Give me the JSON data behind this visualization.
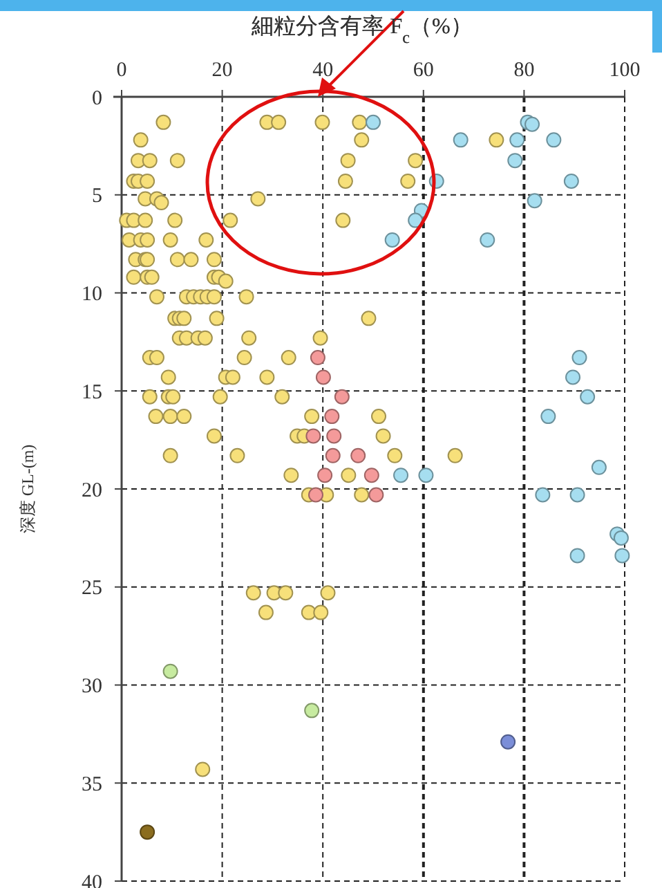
{
  "chart_data": {
    "type": "scatter",
    "xlabel": "細粒分含有率  F$_{c}$（%）",
    "ylabel": "深度  GL-(m)",
    "xlim": [
      0,
      100
    ],
    "xticks": [
      0,
      20,
      40,
      60,
      80,
      100
    ],
    "ylim": [
      40,
      0
    ],
    "yticks": [
      0,
      5,
      10,
      15,
      20,
      25,
      30,
      35,
      40
    ],
    "grid": true,
    "marker": "circle",
    "series": [
      {
        "color": "#f7e07a",
        "x": [
          8.3,
          28.9,
          31.2,
          39.9,
          47.3,
          3.8,
          47.7,
          74.5,
          3.3,
          5.6,
          11.1,
          45,
          58.4,
          2.4,
          3.3,
          5.1,
          44.5,
          56.9,
          4.7,
          7,
          7.9,
          27.1,
          1,
          2.4,
          4.7,
          10.6,
          21.6,
          44,
          1.5,
          3.8,
          5.1,
          9.7,
          16.8,
          2.8,
          4.7,
          5.1,
          11.1,
          13.8,
          18.4,
          2.4,
          5.1,
          6,
          18.4,
          19.3,
          20.7,
          7,
          12.9,
          14.3,
          15.7,
          17,
          18.4,
          24.8,
          10.6,
          11.5,
          12.4,
          18.9,
          49.1,
          11.5,
          12.9,
          15.2,
          16.6,
          25.3,
          39.5,
          5.6,
          7,
          24.4,
          33.2,
          9.3,
          20.7,
          22.1,
          28.9,
          5.6,
          9.3,
          10.2,
          19.6,
          31.9,
          6.8,
          9.7,
          12.4,
          37.8,
          51.1,
          18.4,
          34.9,
          36.3,
          52,
          9.7,
          23,
          54.3,
          66.3,
          33.7,
          45.1,
          37.2,
          40.7,
          47.7,
          26.2,
          30.3,
          32.6,
          41,
          28.7,
          37.2,
          39.6,
          16.1
        ],
        "values": [
          1.3,
          1.3,
          1.3,
          1.3,
          1.3,
          2.2,
          2.2,
          2.2,
          3.25,
          3.25,
          3.25,
          3.25,
          3.25,
          4.3,
          4.3,
          4.3,
          4.3,
          4.3,
          5.2,
          5.2,
          5.4,
          5.2,
          6.3,
          6.3,
          6.3,
          6.3,
          6.3,
          6.3,
          7.3,
          7.3,
          7.3,
          7.3,
          7.3,
          8.3,
          8.3,
          8.3,
          8.3,
          8.3,
          8.3,
          9.2,
          9.2,
          9.2,
          9.2,
          9.2,
          9.4,
          10.2,
          10.2,
          10.2,
          10.2,
          10.2,
          10.2,
          10.2,
          11.3,
          11.3,
          11.3,
          11.3,
          11.3,
          12.3,
          12.3,
          12.3,
          12.3,
          12.3,
          12.3,
          13.3,
          13.3,
          13.3,
          13.3,
          14.3,
          14.3,
          14.3,
          14.3,
          15.3,
          15.3,
          15.3,
          15.3,
          15.3,
          16.3,
          16.3,
          16.3,
          16.3,
          16.3,
          17.3,
          17.3,
          17.3,
          17.3,
          18.3,
          18.3,
          18.3,
          18.3,
          19.3,
          19.3,
          20.3,
          20.3,
          20.3,
          25.3,
          25.3,
          25.3,
          25.3,
          26.3,
          26.3,
          26.3,
          34.3
        ]
      },
      {
        "color": "#f49a9a",
        "x": [
          39,
          40.1,
          43.8,
          41.8,
          38.1,
          42.2,
          42,
          47,
          40.4,
          49.7,
          38.6,
          50.6
        ],
        "values": [
          13.3,
          14.3,
          15.3,
          16.3,
          17.3,
          17.3,
          18.3,
          18.3,
          19.3,
          19.3,
          20.3,
          20.3
        ]
      },
      {
        "color": "#a6def0",
        "x": [
          50,
          80.7,
          81.6,
          67.4,
          78.6,
          85.9,
          78.2,
          62.6,
          89.4,
          82.1,
          59.6,
          58.4,
          53.8,
          72.7,
          91,
          89.7,
          92.6,
          84.8,
          55.5,
          60.5,
          94.9,
          83.7,
          90.6,
          98.5,
          99.3,
          90.6,
          99.5
        ],
        "values": [
          1.3,
          1.3,
          1.4,
          2.2,
          2.2,
          2.2,
          3.25,
          4.3,
          4.3,
          5.3,
          5.8,
          6.3,
          7.3,
          7.3,
          13.3,
          14.3,
          15.3,
          16.3,
          19.3,
          19.3,
          18.9,
          20.3,
          20.3,
          22.3,
          22.5,
          23.4,
          23.4
        ]
      },
      {
        "color": "#c7eba0",
        "x": [
          9.7,
          37.8
        ],
        "values": [
          29.3,
          31.3
        ]
      },
      {
        "color": "#7b8ed8",
        "x": [
          76.8
        ],
        "values": [
          32.9
        ]
      },
      {
        "color": "#8b6d1f",
        "x": [
          5.1
        ],
        "values": [
          37.5
        ]
      }
    ]
  }
}
